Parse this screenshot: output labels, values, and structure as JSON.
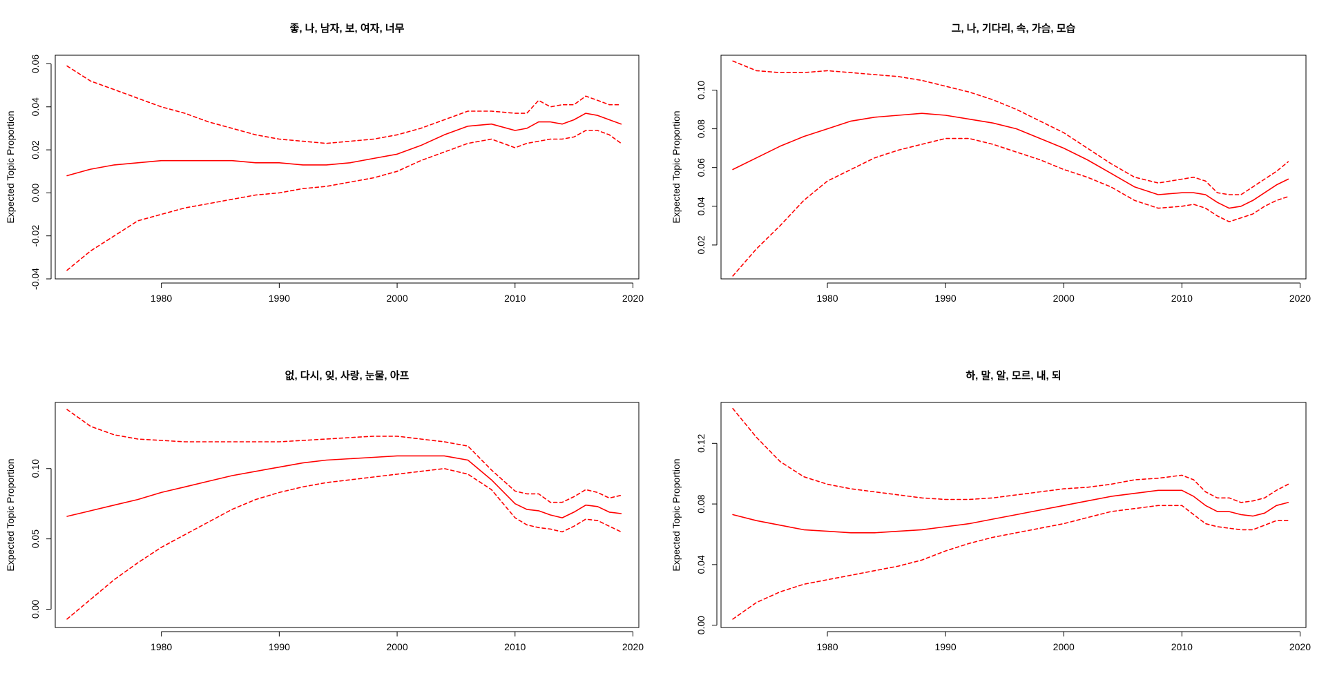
{
  "charts": [
    {
      "type": "line",
      "title": "좋, 나, 남자, 보, 여자, 너무",
      "ylabel": "Expected Topic Proportion",
      "xlabel": "",
      "xlim": [
        1971,
        2020.5
      ],
      "ylim": [
        -0.04,
        0.064
      ],
      "xticks": [
        1980,
        1990,
        2000,
        2010,
        2020
      ],
      "yticks": [
        -0.04,
        -0.02,
        0.0,
        0.02,
        0.04,
        0.06
      ],
      "ytick_labels": [
        "-0.04",
        "-0.02",
        "0.00",
        "0.02",
        "0.04",
        "0.06"
      ],
      "color": "#ff0000",
      "x": [
        1972,
        1974,
        1976,
        1978,
        1980,
        1982,
        1984,
        1986,
        1988,
        1990,
        1992,
        1994,
        1996,
        1998,
        2000,
        2002,
        2004,
        2006,
        2008,
        2010,
        2011,
        2012,
        2013,
        2014,
        2015,
        2016,
        2017,
        2018,
        2019
      ],
      "series": [
        {
          "linestyle": "dashed",
          "values": [
            0.059,
            0.052,
            0.048,
            0.044,
            0.04,
            0.037,
            0.033,
            0.03,
            0.027,
            0.025,
            0.024,
            0.023,
            0.024,
            0.025,
            0.027,
            0.03,
            0.034,
            0.038,
            0.038,
            0.037,
            0.037,
            0.043,
            0.04,
            0.041,
            0.041,
            0.045,
            0.043,
            0.041,
            0.041
          ]
        },
        {
          "linestyle": "solid",
          "values": [
            0.008,
            0.011,
            0.013,
            0.014,
            0.015,
            0.015,
            0.015,
            0.015,
            0.014,
            0.014,
            0.013,
            0.013,
            0.014,
            0.016,
            0.018,
            0.022,
            0.027,
            0.031,
            0.032,
            0.029,
            0.03,
            0.033,
            0.033,
            0.032,
            0.034,
            0.037,
            0.036,
            0.034,
            0.032
          ]
        },
        {
          "linestyle": "dashed",
          "values": [
            -0.036,
            -0.027,
            -0.02,
            -0.013,
            -0.01,
            -0.007,
            -0.005,
            -0.003,
            -0.001,
            0.0,
            0.002,
            0.003,
            0.005,
            0.007,
            0.01,
            0.015,
            0.019,
            0.023,
            0.025,
            0.021,
            0.023,
            0.024,
            0.025,
            0.025,
            0.026,
            0.029,
            0.029,
            0.027,
            0.023
          ]
        }
      ]
    },
    {
      "type": "line",
      "title": "그, 나, 기다리, 속, 가슴, 모습",
      "ylabel": "Expected Topic Proportion",
      "xlabel": "",
      "xlim": [
        1971,
        2020.5
      ],
      "ylim": [
        0.0025,
        0.118
      ],
      "xticks": [
        1980,
        1990,
        2000,
        2010,
        2020
      ],
      "yticks": [
        0.02,
        0.04,
        0.06,
        0.08,
        0.1
      ],
      "ytick_labels": [
        "0.02",
        "0.04",
        "0.06",
        "0.08",
        "0.10"
      ],
      "color": "#ff0000",
      "x": [
        1972,
        1974,
        1976,
        1978,
        1980,
        1982,
        1984,
        1986,
        1988,
        1990,
        1992,
        1994,
        1996,
        1998,
        2000,
        2002,
        2004,
        2006,
        2008,
        2010,
        2011,
        2012,
        2013,
        2014,
        2015,
        2016,
        2017,
        2018,
        2019
      ],
      "series": [
        {
          "linestyle": "dashed",
          "values": [
            0.115,
            0.11,
            0.109,
            0.109,
            0.11,
            0.109,
            0.108,
            0.107,
            0.105,
            0.102,
            0.099,
            0.095,
            0.09,
            0.084,
            0.078,
            0.07,
            0.062,
            0.055,
            0.052,
            0.054,
            0.055,
            0.053,
            0.047,
            0.046,
            0.046,
            0.05,
            0.054,
            0.058,
            0.063
          ]
        },
        {
          "linestyle": "solid",
          "values": [
            0.059,
            0.065,
            0.071,
            0.076,
            0.08,
            0.084,
            0.086,
            0.087,
            0.088,
            0.087,
            0.085,
            0.083,
            0.08,
            0.075,
            0.07,
            0.064,
            0.057,
            0.05,
            0.046,
            0.047,
            0.047,
            0.046,
            0.042,
            0.039,
            0.04,
            0.043,
            0.047,
            0.051,
            0.054
          ]
        },
        {
          "linestyle": "dashed",
          "values": [
            0.004,
            0.018,
            0.03,
            0.043,
            0.053,
            0.059,
            0.065,
            0.069,
            0.072,
            0.075,
            0.075,
            0.072,
            0.068,
            0.064,
            0.059,
            0.055,
            0.05,
            0.043,
            0.039,
            0.04,
            0.041,
            0.039,
            0.035,
            0.032,
            0.034,
            0.036,
            0.04,
            0.043,
            0.045
          ]
        }
      ]
    },
    {
      "type": "line",
      "title": "없, 다시, 잊, 사랑, 눈물, 아프",
      "ylabel": "Expected Topic Proportion",
      "xlabel": "",
      "xlim": [
        1971,
        2020.5
      ],
      "ylim": [
        -0.013,
        0.147
      ],
      "xticks": [
        1980,
        1990,
        2000,
        2010,
        2020
      ],
      "yticks": [
        0.0,
        0.05,
        0.1
      ],
      "ytick_labels": [
        "0.00",
        "0.05",
        "0.10"
      ],
      "color": "#ff0000",
      "x": [
        1972,
        1974,
        1976,
        1978,
        1980,
        1982,
        1984,
        1986,
        1988,
        1990,
        1992,
        1994,
        1996,
        1998,
        2000,
        2002,
        2004,
        2006,
        2008,
        2010,
        2011,
        2012,
        2013,
        2014,
        2015,
        2016,
        2017,
        2018,
        2019
      ],
      "series": [
        {
          "linestyle": "dashed",
          "values": [
            0.142,
            0.13,
            0.124,
            0.121,
            0.12,
            0.119,
            0.119,
            0.119,
            0.119,
            0.119,
            0.12,
            0.121,
            0.122,
            0.123,
            0.123,
            0.121,
            0.119,
            0.116,
            0.099,
            0.084,
            0.082,
            0.082,
            0.076,
            0.076,
            0.08,
            0.085,
            0.083,
            0.079,
            0.081
          ]
        },
        {
          "linestyle": "solid",
          "values": [
            0.066,
            0.07,
            0.074,
            0.078,
            0.083,
            0.087,
            0.091,
            0.095,
            0.098,
            0.101,
            0.104,
            0.106,
            0.107,
            0.108,
            0.109,
            0.109,
            0.109,
            0.106,
            0.092,
            0.075,
            0.071,
            0.07,
            0.067,
            0.065,
            0.069,
            0.074,
            0.073,
            0.069,
            0.068
          ]
        },
        {
          "linestyle": "dashed",
          "values": [
            -0.007,
            0.007,
            0.021,
            0.033,
            0.044,
            0.053,
            0.062,
            0.071,
            0.078,
            0.083,
            0.087,
            0.09,
            0.092,
            0.094,
            0.096,
            0.098,
            0.1,
            0.096,
            0.085,
            0.065,
            0.06,
            0.058,
            0.057,
            0.055,
            0.059,
            0.064,
            0.063,
            0.059,
            0.055
          ]
        }
      ]
    },
    {
      "type": "line",
      "title": "하, 말, 알, 모르, 내, 되",
      "ylabel": "Expected Topic Proportion",
      "xlabel": "",
      "xlim": [
        1971,
        2020.5
      ],
      "ylim": [
        -0.0015,
        0.147
      ],
      "xticks": [
        1980,
        1990,
        2000,
        2010,
        2020
      ],
      "yticks": [
        0.0,
        0.04,
        0.08,
        0.12
      ],
      "ytick_labels": [
        "0.00",
        "0.04",
        "0.08",
        "0.12"
      ],
      "color": "#ff0000",
      "x": [
        1972,
        1974,
        1976,
        1978,
        1980,
        1982,
        1984,
        1986,
        1988,
        1990,
        1992,
        1994,
        1996,
        1998,
        2000,
        2002,
        2004,
        2006,
        2008,
        2010,
        2011,
        2012,
        2013,
        2014,
        2015,
        2016,
        2017,
        2018,
        2019
      ],
      "series": [
        {
          "linestyle": "dashed",
          "values": [
            0.143,
            0.124,
            0.108,
            0.098,
            0.093,
            0.09,
            0.088,
            0.086,
            0.084,
            0.083,
            0.083,
            0.084,
            0.086,
            0.088,
            0.09,
            0.091,
            0.093,
            0.096,
            0.097,
            0.099,
            0.096,
            0.088,
            0.084,
            0.084,
            0.081,
            0.082,
            0.084,
            0.089,
            0.093
          ]
        },
        {
          "linestyle": "solid",
          "values": [
            0.073,
            0.069,
            0.066,
            0.063,
            0.062,
            0.061,
            0.061,
            0.062,
            0.063,
            0.065,
            0.067,
            0.07,
            0.073,
            0.076,
            0.079,
            0.082,
            0.085,
            0.087,
            0.089,
            0.089,
            0.085,
            0.079,
            0.075,
            0.075,
            0.073,
            0.072,
            0.074,
            0.079,
            0.081
          ]
        },
        {
          "linestyle": "dashed",
          "values": [
            0.004,
            0.015,
            0.022,
            0.027,
            0.03,
            0.033,
            0.036,
            0.039,
            0.043,
            0.049,
            0.054,
            0.058,
            0.061,
            0.064,
            0.067,
            0.071,
            0.075,
            0.077,
            0.079,
            0.079,
            0.073,
            0.067,
            0.065,
            0.064,
            0.063,
            0.063,
            0.066,
            0.069,
            0.069
          ]
        }
      ]
    }
  ]
}
